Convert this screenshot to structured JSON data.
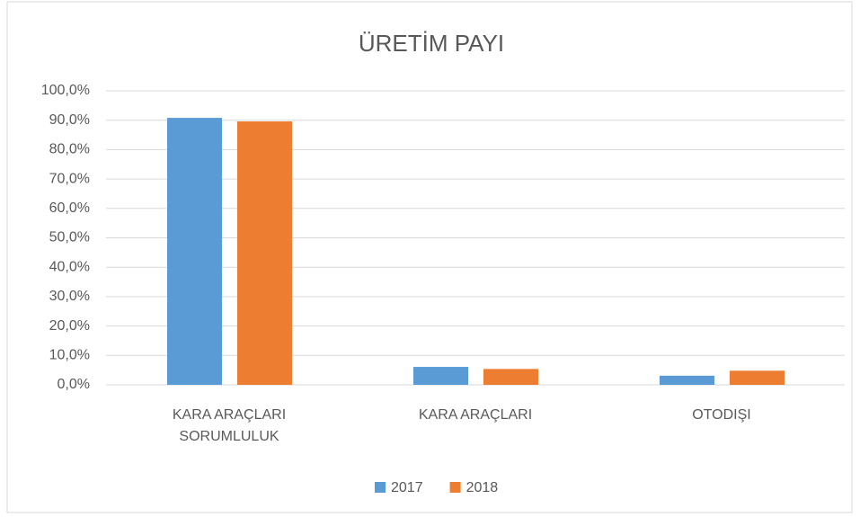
{
  "chart_data": {
    "type": "bar",
    "title": "ÜRETİM PAYI",
    "categories": [
      "KARA ARAÇLARI SORUMLULUK",
      "KARA ARAÇLARI",
      "OTODIŞI"
    ],
    "series": [
      {
        "name": "2017",
        "color": "#5b9bd5",
        "values": [
          90.8,
          6.1,
          3.1
        ]
      },
      {
        "name": "2018",
        "color": "#ed7d31",
        "values": [
          89.6,
          5.4,
          4.8
        ]
      }
    ],
    "ylim": [
      0,
      100
    ],
    "yticks": [
      {
        "value": 0,
        "label": "0,0%"
      },
      {
        "value": 10,
        "label": "10,0%"
      },
      {
        "value": 20,
        "label": "20,0%"
      },
      {
        "value": 30,
        "label": "30,0%"
      },
      {
        "value": 40,
        "label": "40,0%"
      },
      {
        "value": 50,
        "label": "50,0%"
      },
      {
        "value": 60,
        "label": "60,0%"
      },
      {
        "value": 70,
        "label": "70,0%"
      },
      {
        "value": 80,
        "label": "80,0%"
      },
      {
        "value": 90,
        "label": "90,0%"
      },
      {
        "value": 100,
        "label": "100,0%"
      }
    ],
    "grid": true,
    "legend": "bottom"
  }
}
